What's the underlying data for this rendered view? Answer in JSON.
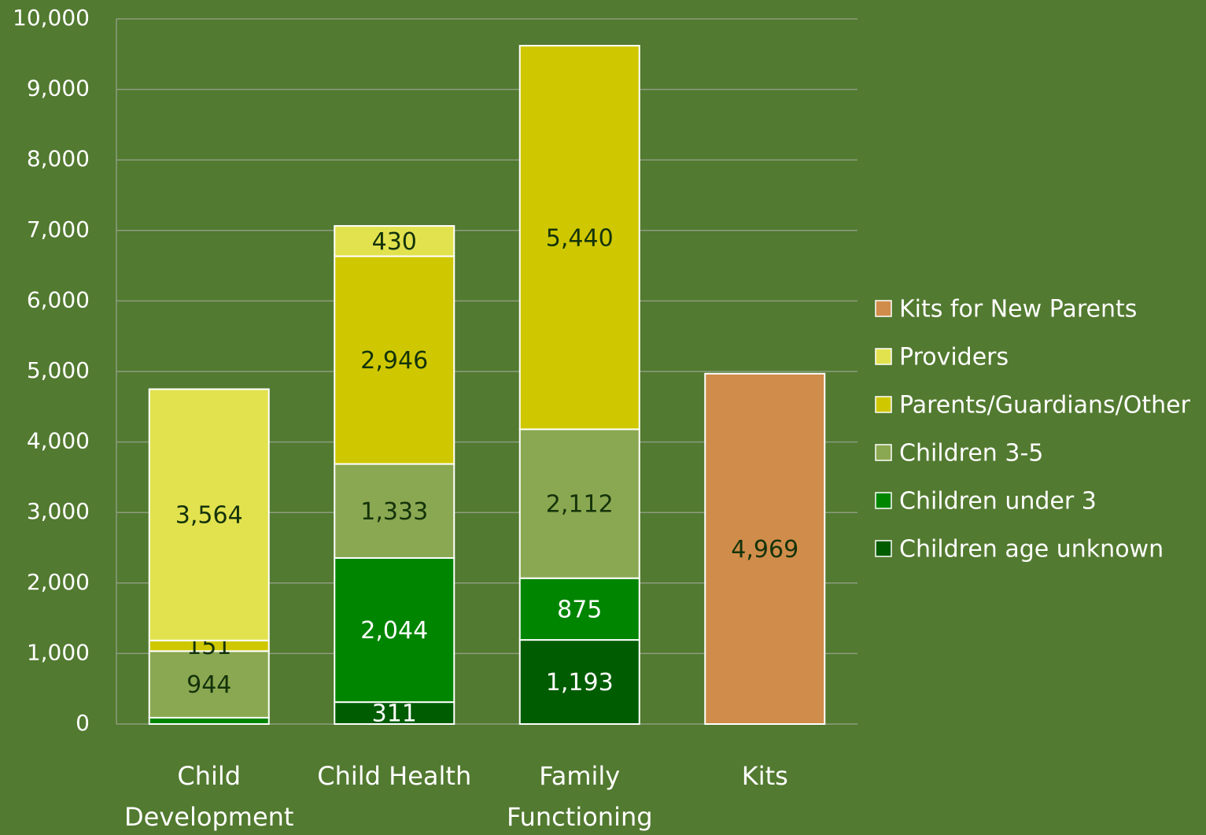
{
  "chart_data": {
    "type": "stacked_bar",
    "categories": [
      "Child Development",
      "Child Health",
      "Family Functioning",
      "Kits"
    ],
    "series": [
      {
        "name": "Children age unknown",
        "color": "#005c00",
        "label_color": "#ffffff",
        "values": [
          null,
          311,
          1193,
          null
        ],
        "value_labels": [
          null,
          "311",
          "1,193",
          null
        ]
      },
      {
        "name": "Children under 3",
        "color": "#008500",
        "label_color": "#ffffff",
        "values": [
          90,
          2044,
          875,
          null
        ],
        "value_labels": [
          null,
          "2,044",
          "875",
          null
        ]
      },
      {
        "name": "Children 3-5",
        "color": "#8aa851",
        "label_color": "#14330a",
        "values": [
          944,
          1333,
          2112,
          null
        ],
        "value_labels": [
          "944",
          "1,333",
          "2,112",
          null
        ]
      },
      {
        "name": "Parents/Guardians/Other",
        "color": "#cfc800",
        "label_color": "#14330a",
        "values": [
          151,
          2946,
          5440,
          null
        ],
        "value_labels": [
          "151",
          "2,946",
          "5,440",
          null
        ]
      },
      {
        "name": "Providers",
        "color": "#e2e24f",
        "label_color": "#14330a",
        "values": [
          3564,
          430,
          null,
          null
        ],
        "value_labels": [
          "3,564",
          "430",
          null,
          null
        ]
      },
      {
        "name": "Kits for New Parents",
        "color": "#d08c4a",
        "label_color": "#14330a",
        "values": [
          null,
          null,
          null,
          4969
        ],
        "value_labels": [
          null,
          null,
          null,
          "4,969"
        ]
      }
    ],
    "ylim": [
      0,
      10000
    ],
    "yticks": [
      0,
      {
        "value": 1000,
        "label": "1,000"
      },
      {
        "value": 2000,
        "label": "2,000"
      },
      {
        "value": 3000,
        "label": "3,000"
      },
      {
        "value": 4000,
        "label": "4,000"
      },
      {
        "value": 5000,
        "label": "5,000"
      },
      {
        "value": 6000,
        "label": "6,000"
      },
      {
        "value": 7000,
        "label": "7,000"
      },
      {
        "value": 8000,
        "label": "8,000"
      },
      {
        "value": 9000,
        "label": "9,000"
      },
      {
        "value": 10000,
        "label": "10,000"
      }
    ],
    "grid": true,
    "legend": "right"
  }
}
